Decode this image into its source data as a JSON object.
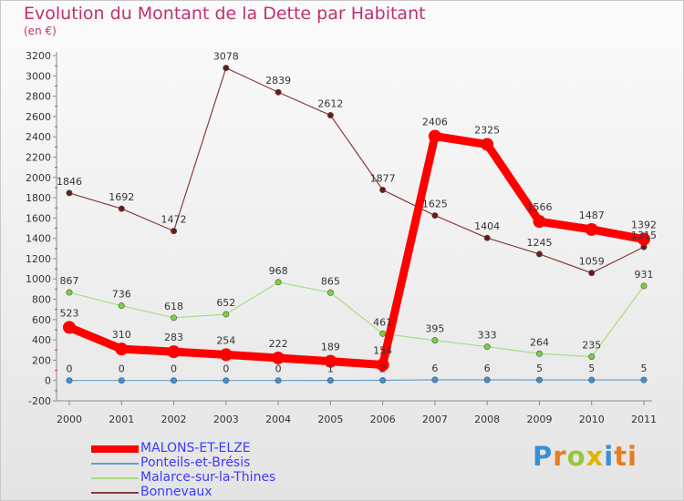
{
  "title": "Evolution du Montant de la Dette par Habitant",
  "subtitle": "(en €)",
  "logo": [
    "P",
    "r",
    "o",
    "x",
    "i",
    "ti"
  ],
  "chart_data": {
    "type": "line",
    "x": [
      "2000",
      "2001",
      "2002",
      "2003",
      "2004",
      "2005",
      "2006",
      "2007",
      "2008",
      "2009",
      "2010",
      "2011"
    ],
    "ylim": [
      -200,
      3200
    ],
    "yticks": [
      -200,
      0,
      200,
      400,
      600,
      800,
      1000,
      1200,
      1400,
      1600,
      1800,
      2000,
      2200,
      2400,
      2600,
      2800,
      3000,
      3200
    ],
    "grid": false,
    "legend_position": "bottom-left",
    "series": [
      {
        "name": "MALONS-ET-ELZE",
        "color": "#ff0000",
        "marker_color": "#ff0000",
        "highlight": true,
        "values": [
          523,
          310,
          283,
          254,
          222,
          189,
          154,
          2406,
          2325,
          1566,
          1487,
          1392
        ],
        "labels": [
          "523",
          "310",
          "283",
          "254",
          "222",
          "189",
          "154",
          "2406",
          "2325",
          "1566",
          "1487",
          "1392"
        ]
      },
      {
        "name": "Ponteils-et-Brésis",
        "color": "#6a9ec8",
        "marker_color": "#3d8fd6",
        "values": [
          0,
          0,
          0,
          0,
          0,
          1,
          2,
          6,
          6,
          5,
          5,
          5
        ],
        "labels": [
          "0",
          "0",
          "0",
          "0",
          "0",
          "1",
          "2",
          "6",
          "6",
          "5",
          "5",
          "5"
        ]
      },
      {
        "name": "Malarce-sur-la-Thines",
        "color": "#a6dd80",
        "marker_color": "#7ccf3c",
        "values": [
          867,
          736,
          618,
          652,
          968,
          865,
          461,
          395,
          333,
          264,
          235,
          931
        ],
        "labels": [
          "867",
          "736",
          "618",
          "652",
          "968",
          "865",
          "461",
          "395",
          "333",
          "264",
          "235",
          "931"
        ]
      },
      {
        "name": "Bonnevaux",
        "color": "#8a3a3a",
        "marker_color": "#6a1a1a",
        "values": [
          1846,
          1692,
          1472,
          3078,
          2839,
          2612,
          1877,
          1625,
          1404,
          1245,
          1059,
          1315
        ],
        "labels": [
          "1846",
          "1692",
          "1472",
          "3078",
          "2839",
          "2612",
          "1877",
          "1625",
          "1404",
          "1245",
          "1059",
          "1315"
        ]
      }
    ]
  }
}
